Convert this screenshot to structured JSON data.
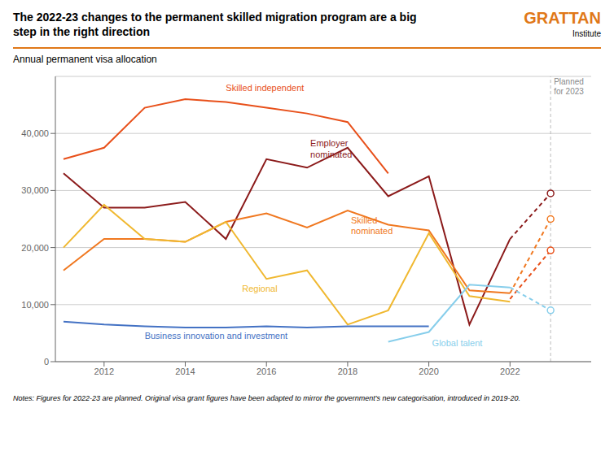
{
  "chart_data": {
    "type": "line",
    "title": "The 2022-23 changes to the permanent skilled migration program are a big\nstep in the right direction",
    "subtitle": "Annual permanent visa allocation",
    "note": "Notes: Figures for 2022-23 are planned. Original visa grant figures have been adapted to mirror the government's new categorisation, introduced in 2019-20.",
    "logo": "GRATTAN",
    "logo_sub": "Institute",
    "color": "#E07818",
    "annotations": [
      {
        "text": "Planned\nfor 2023",
        "x": 2023
      }
    ],
    "x": [
      2011,
      2012,
      2013,
      2014,
      2015,
      2016,
      2017,
      2018,
      2019,
      2020,
      2021,
      2022,
      2023
    ],
    "series": [
      {
        "name": "Skilled independent",
        "color": "#E8501A",
        "values": [
          35500,
          37500,
          44500,
          46000,
          45500,
          44500,
          43500,
          42000,
          33000,
          null,
          null,
          null,
          null
        ],
        "planned_values": [
          null,
          null,
          null,
          null,
          null,
          null,
          null,
          null,
          null,
          null,
          null,
          11000,
          19500
        ],
        "marker": "open_circle"
      },
      {
        "name": "Employer\nnominated",
        "color": "#8B1A1A",
        "values": [
          33000,
          27000,
          27000,
          28000,
          21500,
          35500,
          34000,
          37500,
          29000,
          32500,
          6500,
          21500,
          null
        ],
        "planned_values": [
          null,
          null,
          null,
          null,
          null,
          null,
          null,
          null,
          null,
          null,
          null,
          21500,
          29500
        ],
        "marker": "open_circle"
      },
      {
        "name": "Skilled\nnominated",
        "color": "#F07820",
        "values": [
          16000,
          21500,
          21500,
          21000,
          24500,
          26000,
          23500,
          26500,
          24000,
          23000,
          12500,
          12000,
          null
        ],
        "planned_values": [
          null,
          null,
          null,
          null,
          null,
          null,
          null,
          null,
          null,
          null,
          null,
          12000,
          25000
        ],
        "marker": "open_circle"
      },
      {
        "name": "Regional",
        "color": "#F0B830",
        "values": [
          20000,
          27500,
          21500,
          21000,
          24500,
          14500,
          16000,
          6500,
          9000,
          22500,
          11500,
          10500,
          null
        ]
      },
      {
        "name": "Business innovation and investment",
        "color": "#4472C4",
        "values": [
          7000,
          6500,
          6200,
          6000,
          6000,
          6200,
          6000,
          6200,
          6200,
          6200,
          null,
          null,
          null
        ]
      },
      {
        "name": "Global talent",
        "color": "#87CEEB",
        "values": [
          null,
          null,
          null,
          null,
          null,
          null,
          null,
          null,
          3500,
          5200,
          13500,
          13000,
          null
        ],
        "planned_values": [
          null,
          null,
          null,
          null,
          null,
          null,
          null,
          null,
          null,
          null,
          null,
          13000,
          9000
        ],
        "marker": "open_circle"
      }
    ],
    "xlim": [
      2010.8,
      2024.0
    ],
    "xticks": [
      2012,
      2014,
      2016,
      2018,
      2020,
      2022
    ],
    "ylim": [
      0,
      50000
    ],
    "yticks": [
      0,
      {
        "value": 10000,
        "label": "10,000"
      },
      {
        "value": 20000,
        "label": "20,000"
      },
      {
        "value": 30000,
        "label": "30,000"
      },
      {
        "value": 40000,
        "label": "40,000"
      }
    ],
    "grid": true
  }
}
